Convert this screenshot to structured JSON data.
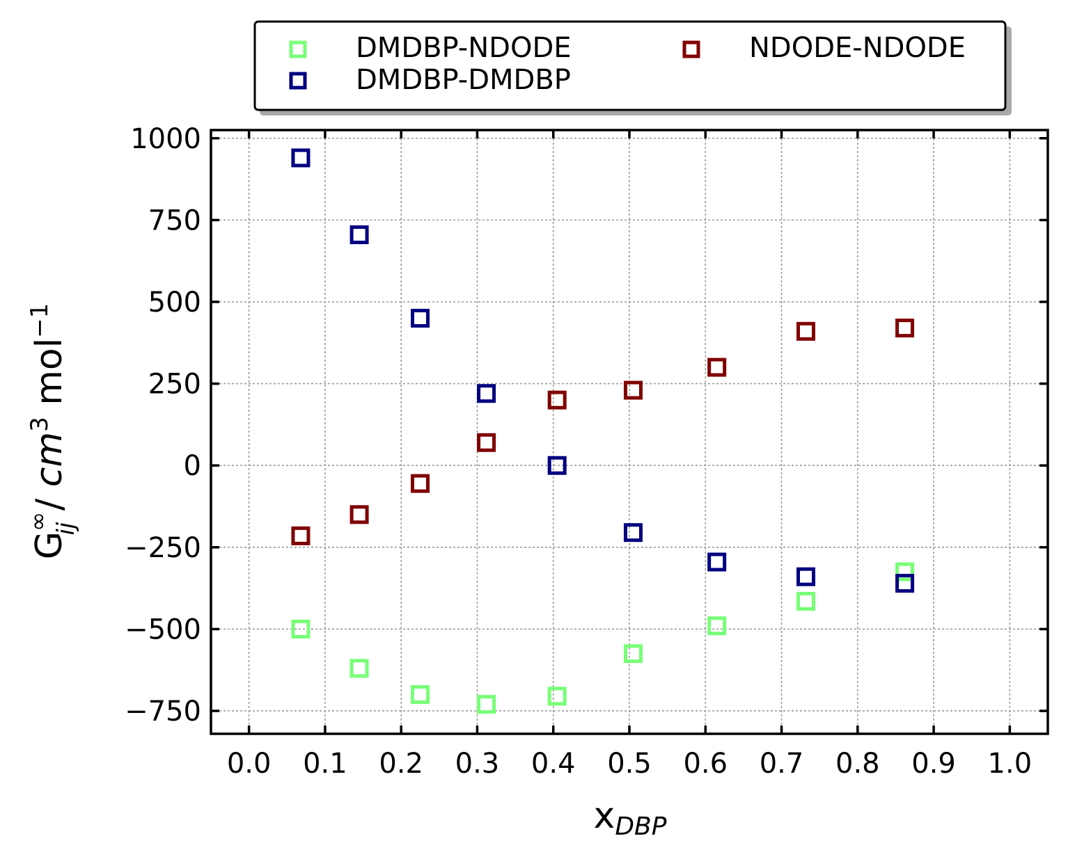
{
  "chart_data": {
    "type": "scatter",
    "xlabel": "x",
    "xlabel_sub": "DBP",
    "ylabel": {
      "base": "G",
      "sup": "∞",
      "sub": "ij",
      "unit_prefix": " / ",
      "unit_cm": "cm",
      "unit_cm_exp": "3",
      "unit_mol": " mol",
      "unit_mol_exp": "−1"
    },
    "xlim": [
      -0.05,
      1.05
    ],
    "ylim": [
      -820,
      1025
    ],
    "xticks": [
      0.0,
      0.1,
      0.2,
      0.3,
      0.4,
      0.5,
      0.6,
      0.7,
      0.8,
      0.9,
      1.0
    ],
    "xtick_labels": [
      "0.0",
      "0.1",
      "0.2",
      "0.3",
      "0.4",
      "0.5",
      "0.6",
      "0.7",
      "0.8",
      "0.9",
      "1.0"
    ],
    "yticks": [
      1000,
      750,
      500,
      250,
      0,
      -250,
      -500,
      -750
    ],
    "ytick_labels": [
      "1000",
      "750",
      "500",
      "250",
      "0",
      "−250",
      "−500",
      "−750"
    ],
    "grid": true,
    "marker": "hollow-square",
    "legend_position": "top, outside plot area",
    "series": [
      {
        "name": "DMDBP-NDODE",
        "color": "#77ff77",
        "x": [
          0.068,
          0.145,
          0.225,
          0.312,
          0.405,
          0.505,
          0.615,
          0.732,
          0.862
        ],
        "y": [
          -500,
          -620,
          -700,
          -730,
          -705,
          -575,
          -490,
          -415,
          -325
        ]
      },
      {
        "name": "NDODE-NDODE",
        "color": "#800000",
        "x": [
          0.068,
          0.145,
          0.225,
          0.312,
          0.405,
          0.505,
          0.615,
          0.732,
          0.862
        ],
        "y": [
          -215,
          -150,
          -55,
          70,
          200,
          230,
          300,
          410,
          420
        ]
      },
      {
        "name": "DMDBP-DMDBP",
        "color": "#000080",
        "x": [
          0.068,
          0.145,
          0.225,
          0.312,
          0.405,
          0.505,
          0.615,
          0.732,
          0.862
        ],
        "y": [
          940,
          705,
          450,
          220,
          0,
          -205,
          -295,
          -340,
          -360
        ]
      }
    ]
  }
}
